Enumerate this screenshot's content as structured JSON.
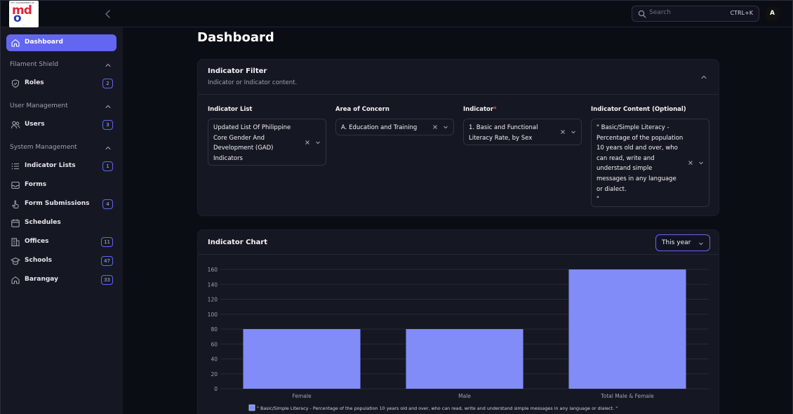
{
  "logo": {
    "top_text": "CITY GOVERNMENT OF ...",
    "main_text": "md",
    "sub_text": "o",
    "bottom_text": "..."
  },
  "topbar": {
    "search_placeholder": "Search",
    "search_shortcut": "CTRL+K",
    "avatar_initial": "A"
  },
  "sidebar": {
    "dashboard": "Dashboard",
    "groups": [
      {
        "label": "Filament Shield",
        "items": [
          {
            "label": "Roles",
            "badge": "2",
            "icon": "shield-icon"
          }
        ]
      },
      {
        "label": "User Management",
        "items": [
          {
            "label": "Users",
            "badge": "3",
            "icon": "users-icon"
          }
        ]
      },
      {
        "label": "System Management",
        "items": [
          {
            "label": "Indicator Lists",
            "badge": "1",
            "icon": "list-icon"
          },
          {
            "label": "Forms",
            "badge": "",
            "icon": "inbox-icon"
          },
          {
            "label": "Form Submissions",
            "badge": "4",
            "icon": "pointer-icon"
          },
          {
            "label": "Schedules",
            "badge": "",
            "icon": "calendar-icon"
          },
          {
            "label": "Offices",
            "badge": "11",
            "icon": "building-icon"
          },
          {
            "label": "Schools",
            "badge": "47",
            "icon": "school-icon"
          },
          {
            "label": "Barangay",
            "badge": "33",
            "icon": "home-icon"
          }
        ]
      }
    ]
  },
  "page": {
    "title": "Dashboard"
  },
  "filter": {
    "title": "Indicator Filter",
    "description": "Indicator or Indicator content.",
    "fields": {
      "indicator_list": {
        "label": "Indicator List",
        "value_lines": [
          "Updated List Of Philippine",
          "Core Gender And",
          "Development (GAD)",
          "Indicators"
        ]
      },
      "area_of_concern": {
        "label": "Area of Concern",
        "value_lines": [
          "A. Education and Training"
        ]
      },
      "indicator": {
        "label": "Indicator",
        "required_mark": "*",
        "value_lines": [
          "1. Basic and Functional",
          "Literacy Rate, by Sex"
        ]
      },
      "indicator_content": {
        "label": "Indicator Content (Optional)",
        "value_lines": [
          "\" Basic/Simple Literacy -",
          "Percentage of the population",
          "10 years old and over, who",
          "can read, write and",
          "understand simple",
          "messages in any language",
          "or dialect.",
          "\""
        ]
      }
    }
  },
  "chart_card": {
    "title": "Indicator Chart",
    "period": "This year"
  },
  "colors": {
    "accent": "#6366f1",
    "bar": "#818cf8",
    "bg": "#0b0d14",
    "panel": "#151822"
  },
  "chart_data": {
    "type": "bar",
    "categories": [
      "Female",
      "Male",
      "Total Male & Female"
    ],
    "series": [
      {
        "name": "\" Basic/Simple Literacy - Percentage of the population 10 years old and over, who can read, write and understand simple messages in any language or dialect. \"",
        "values": [
          80,
          80,
          160
        ]
      }
    ],
    "ylim": [
      0,
      160
    ],
    "yticks": [
      0,
      20,
      40,
      60,
      80,
      100,
      120,
      140,
      160
    ],
    "grid": true,
    "legend": "bottom"
  }
}
